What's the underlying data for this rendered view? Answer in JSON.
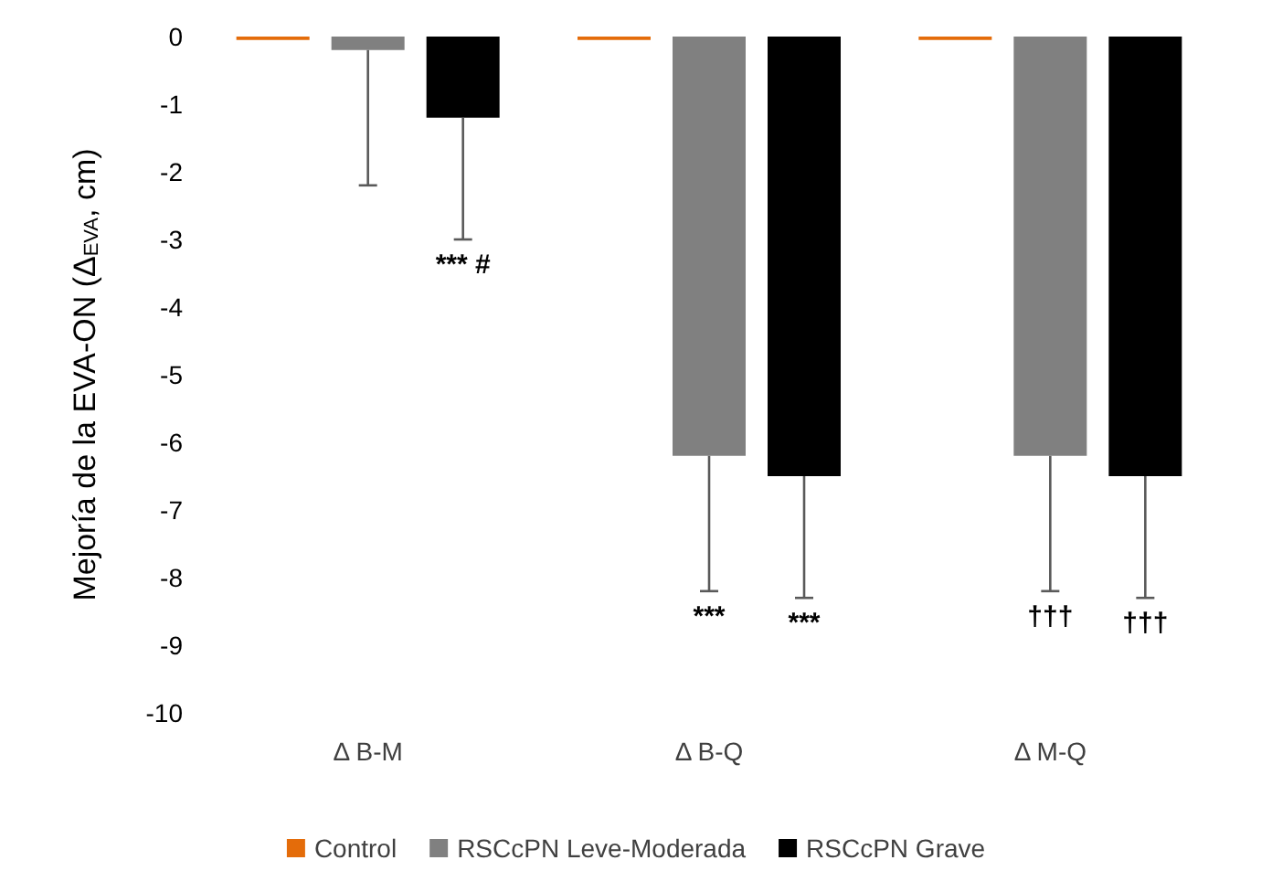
{
  "chart_data": {
    "type": "bar",
    "ylabel": "Mejoría de la EVA-ON (Δ$_{EVA}$, cm)",
    "categories": [
      "Δ B-M",
      "Δ B-Q",
      "Δ M-Q"
    ],
    "series": [
      {
        "name": "Control",
        "color": "#e46c0a",
        "values": [
          -0.05,
          -0.05,
          -0.05
        ]
      },
      {
        "name": "RSCcPN Leve-Moderada",
        "color": "#808080",
        "values": [
          -0.2,
          -6.2,
          -6.2
        ],
        "errors": [
          [
            -2.2,
            -0.2
          ],
          [
            -8.2,
            -6.2
          ],
          [
            -8.2,
            -6.2
          ]
        ]
      },
      {
        "name": "RSCcPN Grave",
        "color": "#000000",
        "values": [
          -1.2,
          -6.5,
          -6.5
        ],
        "errors": [
          [
            -3.0,
            -1.2
          ],
          [
            -8.3,
            -6.5
          ],
          [
            -8.3,
            -6.5
          ]
        ]
      }
    ],
    "ylim": [
      -10,
      0
    ],
    "yticks": [
      -10,
      -9,
      -8,
      -7,
      -6,
      -5,
      -4,
      -3,
      -2,
      -1,
      0
    ],
    "grid": false,
    "legend": "bottom",
    "annotations": [
      "*** #",
      "***",
      "***",
      "†††",
      "†††"
    ]
  }
}
